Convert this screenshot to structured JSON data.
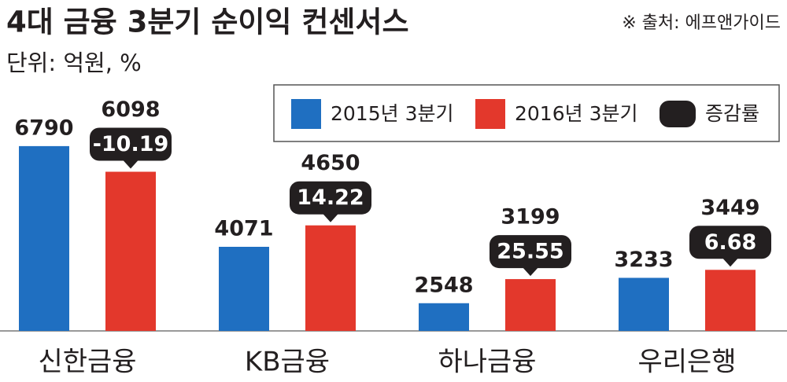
{
  "chart_data": {
    "type": "bar",
    "title": "4대 금융 3분기 순이익 컨센서스",
    "source": "※ 출처: 에프앤가이드",
    "unit": "단위: 억원, %",
    "categories": [
      "신한금융",
      "KB금융",
      "하나금융",
      "우리은행"
    ],
    "series": [
      {
        "name": "2015년 3분기",
        "color": "#1f6fc1",
        "values": [
          6790,
          4071,
          2548,
          3233
        ]
      },
      {
        "name": "2016년 3분기",
        "color": "#e3382c",
        "values": [
          6098,
          4650,
          3199,
          3449
        ]
      }
    ],
    "change": {
      "name": "증감률",
      "color": "#231f20",
      "values": [
        -10.19,
        14.22,
        25.55,
        6.68
      ]
    },
    "ylim": [
      1800,
      7000
    ]
  }
}
